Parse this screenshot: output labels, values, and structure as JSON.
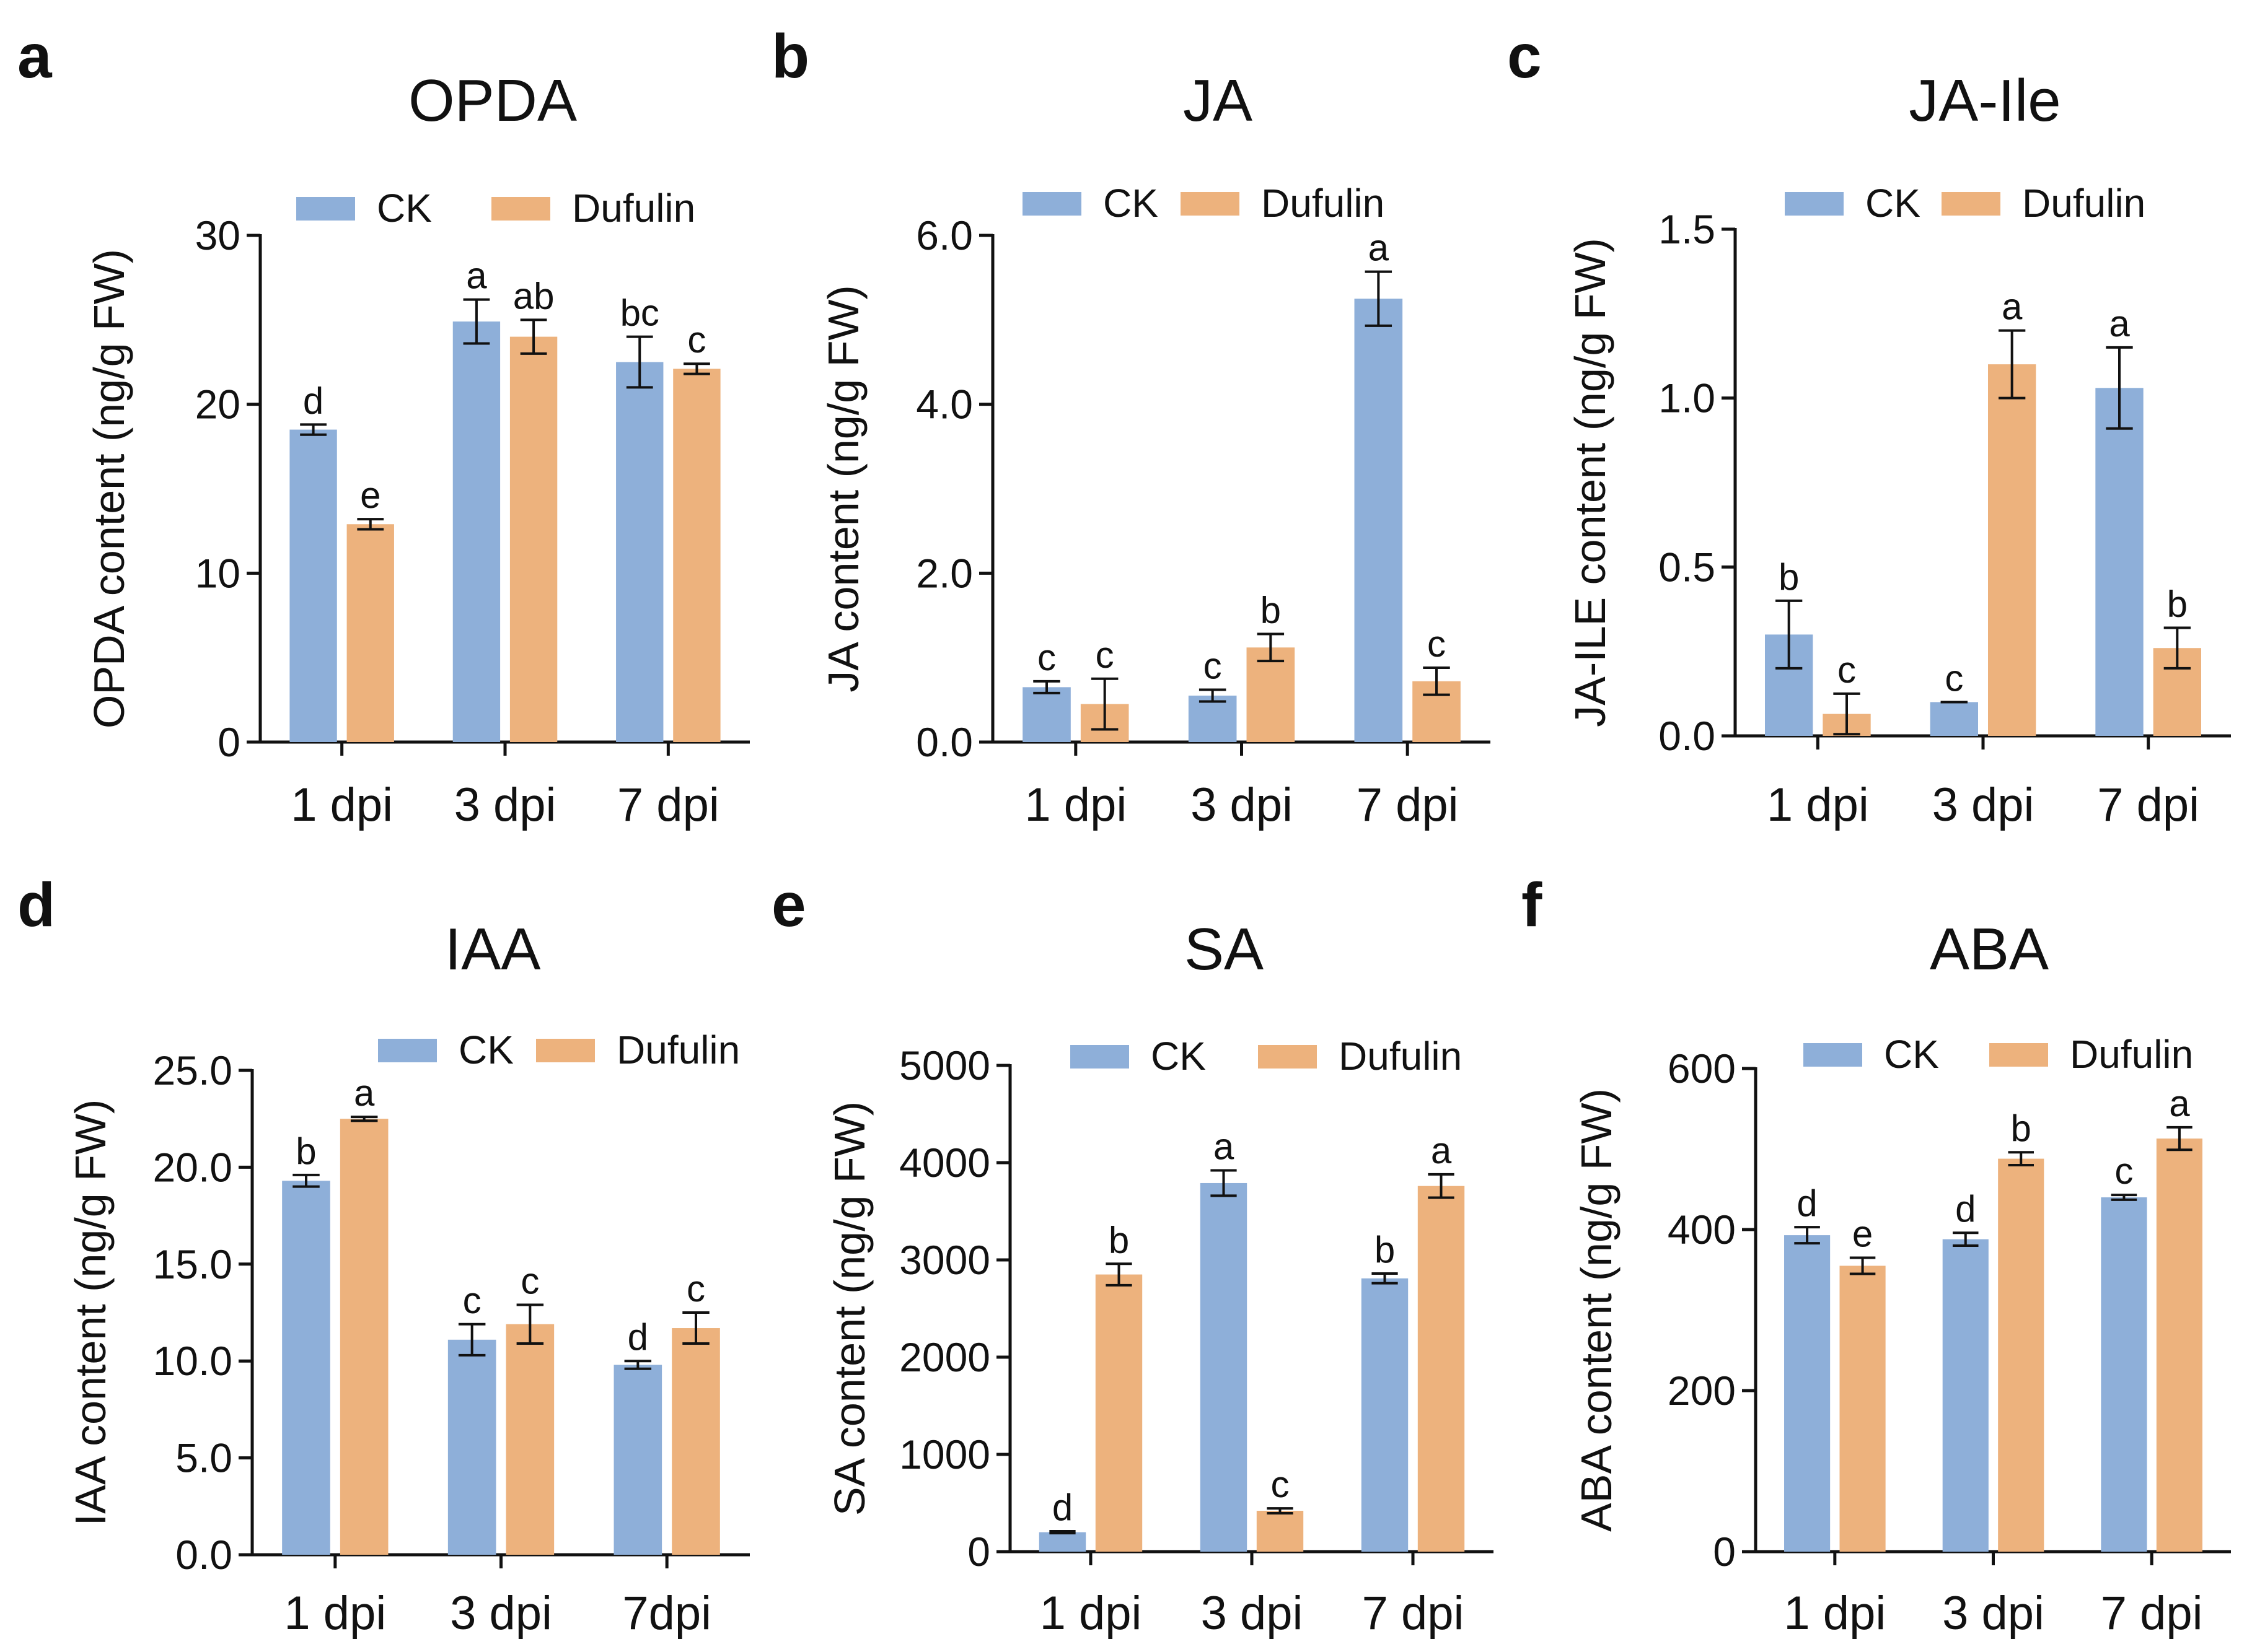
{
  "figure": {
    "colors": {
      "CK": "#8EAFD9",
      "Dufulin": "#EDB27D"
    }
  },
  "chart_data": [
    {
      "panel": "a",
      "type": "bar",
      "title": "OPDA",
      "ylabel": "OPDA content (ng/g FW)",
      "xlabel": "",
      "categories": [
        "1 dpi",
        "3 dpi",
        "7 dpi"
      ],
      "ylim": [
        0,
        30
      ],
      "yticks": [
        0,
        10,
        20,
        30
      ],
      "ytick_labels": [
        "0",
        "10",
        "20",
        "30"
      ],
      "legend": [
        "CK",
        "Dufulin"
      ],
      "legend_position": "top",
      "series": [
        {
          "name": "CK",
          "values": [
            18.5,
            24.9,
            22.5
          ],
          "errors": [
            0.3,
            1.3,
            1.5
          ],
          "labels": [
            "d",
            "a",
            "bc"
          ]
        },
        {
          "name": "Dufulin",
          "values": [
            12.9,
            24.0,
            22.1
          ],
          "errors": [
            0.3,
            1.0,
            0.3
          ],
          "labels": [
            "e",
            "ab",
            "c"
          ]
        }
      ]
    },
    {
      "panel": "b",
      "type": "bar",
      "title": "JA",
      "ylabel": "JA content (ng/g FW)",
      "xlabel": "",
      "categories": [
        "1 dpi",
        "3 dpi",
        "7 dpi"
      ],
      "ylim": [
        0,
        6
      ],
      "yticks": [
        0,
        2,
        4,
        6
      ],
      "ytick_labels": [
        "0.0",
        "2.0",
        "4.0",
        "6.0"
      ],
      "legend": [
        "CK",
        "Dufulin"
      ],
      "legend_position": "top",
      "series": [
        {
          "name": "CK",
          "values": [
            0.65,
            0.55,
            5.25
          ],
          "errors": [
            0.07,
            0.07,
            0.32
          ],
          "labels": [
            "c",
            "c",
            "a"
          ]
        },
        {
          "name": "Dufulin",
          "values": [
            0.45,
            1.12,
            0.72
          ],
          "errors": [
            0.3,
            0.16,
            0.16
          ],
          "labels": [
            "c",
            "b",
            "c"
          ]
        }
      ]
    },
    {
      "panel": "c",
      "type": "bar",
      "title": "JA-Ile",
      "ylabel": "JA-ILE content (ng/g FW)",
      "xlabel": "",
      "categories": [
        "1 dpi",
        "3 dpi",
        "7 dpi"
      ],
      "ylim": [
        0,
        1.5
      ],
      "yticks": [
        0,
        0.5,
        1.0,
        1.5
      ],
      "ytick_labels": [
        "0.0",
        "0.5",
        "1.0",
        "1.5"
      ],
      "legend": [
        "CK",
        "Dufulin"
      ],
      "legend_position": "top",
      "series": [
        {
          "name": "CK",
          "values": [
            0.3,
            0.1,
            1.03
          ],
          "errors": [
            0.1,
            0,
            0.12
          ],
          "labels": [
            "b",
            "c",
            "a"
          ]
        },
        {
          "name": "Dufulin",
          "values": [
            0.065,
            1.1,
            0.26
          ],
          "errors": [
            0.06,
            0.1,
            0.06
          ],
          "labels": [
            "c",
            "a",
            "b"
          ]
        }
      ]
    },
    {
      "panel": "d",
      "type": "bar",
      "title": "IAA",
      "ylabel": "IAA content (ng/g FW)",
      "xlabel": "",
      "categories": [
        "1 dpi",
        "3 dpi",
        "7dpi"
      ],
      "ylim": [
        0,
        25
      ],
      "yticks": [
        0,
        5,
        10,
        15,
        20,
        25
      ],
      "ytick_labels": [
        "0.0",
        "5.0",
        "10.0",
        "15.0",
        "20.0",
        "25.0"
      ],
      "legend": [
        "CK",
        "Dufulin"
      ],
      "legend_position": "top",
      "series": [
        {
          "name": "CK",
          "values": [
            19.3,
            11.1,
            9.8
          ],
          "errors": [
            0.3,
            0.8,
            0.2
          ],
          "labels": [
            "b",
            "c",
            "d"
          ]
        },
        {
          "name": "Dufulin",
          "values": [
            22.5,
            11.9,
            11.7
          ],
          "errors": [
            0.1,
            1.0,
            0.8
          ],
          "labels": [
            "a",
            "c",
            "c"
          ]
        }
      ]
    },
    {
      "panel": "e",
      "type": "bar",
      "title": "SA",
      "ylabel": "SA content (ng/g FW)",
      "xlabel": "",
      "categories": [
        "1 dpi",
        "3 dpi",
        "7 dpi"
      ],
      "ylim": [
        0,
        5000
      ],
      "yticks": [
        0,
        1000,
        2000,
        3000,
        4000,
        5000
      ],
      "ytick_labels": [
        "0",
        "1000",
        "2000",
        "3000",
        "4000",
        "5000"
      ],
      "legend": [
        "CK",
        "Dufulin"
      ],
      "legend_position": "top",
      "series": [
        {
          "name": "CK",
          "values": [
            200,
            3790,
            2810
          ],
          "errors": [
            10,
            130,
            50
          ],
          "labels": [
            "d",
            "a",
            "b"
          ]
        },
        {
          "name": "Dufulin",
          "values": [
            2850,
            420,
            3760
          ],
          "errors": [
            110,
            25,
            120
          ],
          "labels": [
            "b",
            "c",
            "a"
          ]
        }
      ]
    },
    {
      "panel": "f",
      "type": "bar",
      "title": "ABA",
      "ylabel": "ABA content (ng/g FW)",
      "xlabel": "",
      "categories": [
        "1 dpi",
        "3 dpi",
        "7 dpi"
      ],
      "ylim": [
        0,
        600
      ],
      "yticks": [
        0,
        200,
        400,
        600
      ],
      "ytick_labels": [
        "0",
        "200",
        "400",
        "600"
      ],
      "legend": [
        "CK",
        "Dufulin"
      ],
      "legend_position": "top",
      "series": [
        {
          "name": "CK",
          "values": [
            393,
            388,
            440
          ],
          "errors": [
            10,
            8,
            3
          ],
          "labels": [
            "d",
            "d",
            "c"
          ]
        },
        {
          "name": "Dufulin",
          "values": [
            355,
            488,
            513
          ],
          "errors": [
            10,
            8,
            14
          ],
          "labels": [
            "e",
            "b",
            "a"
          ]
        }
      ]
    }
  ]
}
